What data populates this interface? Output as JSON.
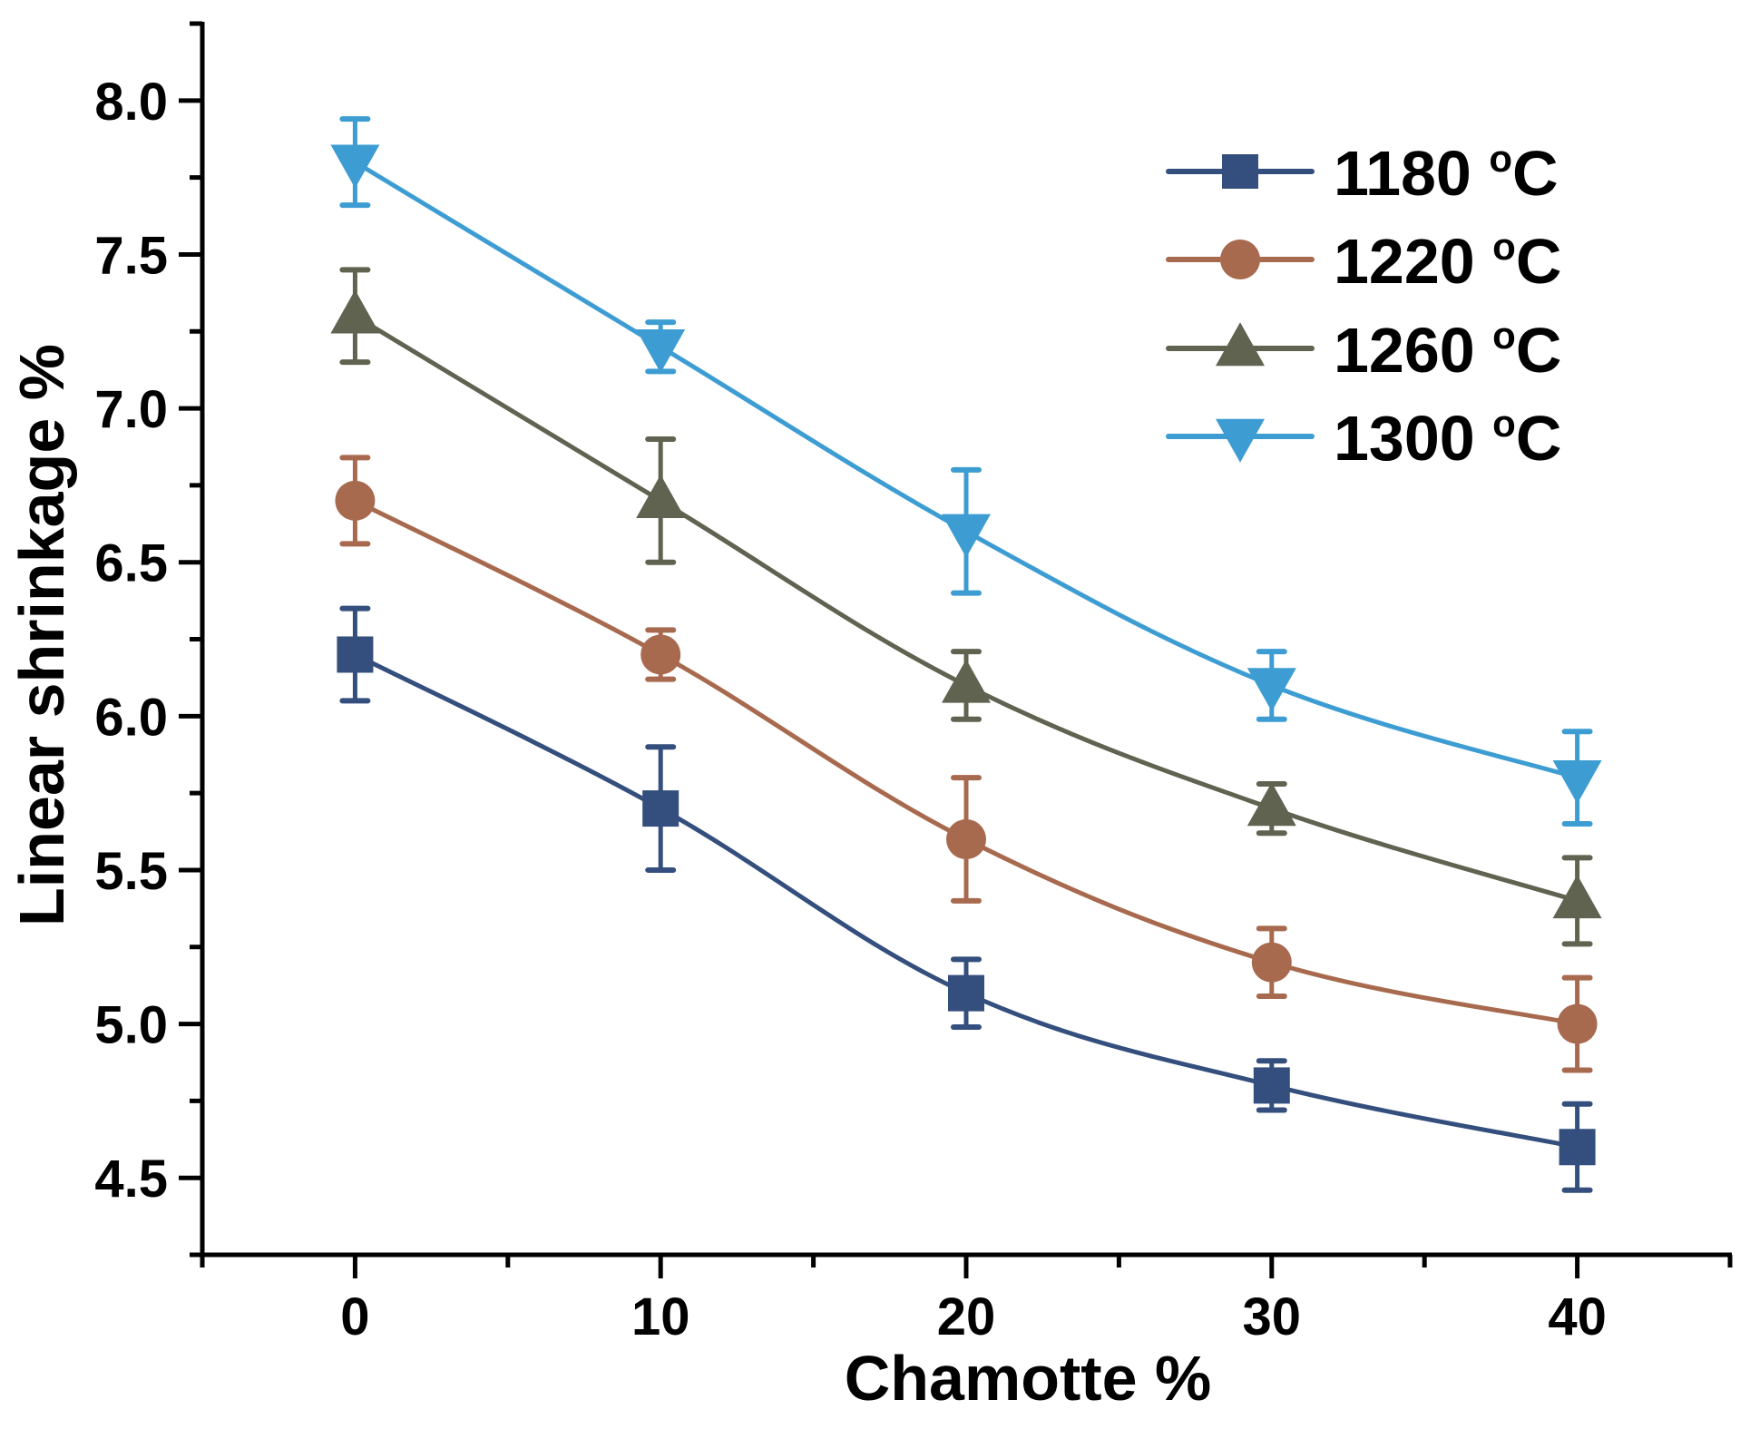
{
  "chart_data": {
    "type": "line",
    "title": "",
    "xlabel": "Chamotte %",
    "ylabel": "Linear shrinkage %",
    "x": [
      0,
      10,
      20,
      30,
      40
    ],
    "xlim": [
      -5,
      45
    ],
    "ylim": [
      4.25,
      8.25
    ],
    "xticks": [
      0,
      10,
      20,
      30,
      40
    ],
    "xtick_labels": [
      "0",
      "10",
      "20",
      "30",
      "40"
    ],
    "xminor_ticks": [
      -5,
      5,
      15,
      25,
      35,
      45
    ],
    "yticks": [
      4.5,
      5.0,
      5.5,
      6.0,
      6.5,
      7.0,
      7.5,
      8.0
    ],
    "ytick_labels": [
      "4.5",
      "5.0",
      "5.5",
      "6.0",
      "6.5",
      "7.0",
      "7.5",
      "8.0"
    ],
    "yminor_ticks": [
      4.25,
      4.75,
      5.25,
      5.75,
      6.25,
      6.75,
      7.25,
      7.75,
      8.25
    ],
    "grid": false,
    "legend_position": "top-right",
    "line_style": "smooth",
    "series": [
      {
        "name": "1180 °C",
        "label_main": "1180 ",
        "label_sup": "o",
        "label_unit": "C",
        "marker": "square",
        "color": "#344f7d",
        "values": [
          6.2,
          5.7,
          5.1,
          4.8,
          4.6
        ],
        "errors": [
          0.15,
          0.2,
          0.11,
          0.08,
          0.14
        ]
      },
      {
        "name": "1220 °C",
        "label_main": "1220 ",
        "label_sup": "o",
        "label_unit": "C",
        "marker": "circle",
        "color": "#a86a4e",
        "values": [
          6.7,
          6.2,
          5.6,
          5.2,
          5.0
        ],
        "errors": [
          0.14,
          0.08,
          0.2,
          0.11,
          0.15
        ]
      },
      {
        "name": "1260 °C",
        "label_main": "1260 ",
        "label_sup": "o",
        "label_unit": "C",
        "marker": "triangle-up",
        "color": "#5f6350",
        "values": [
          7.3,
          6.7,
          6.1,
          5.7,
          5.4
        ],
        "errors": [
          0.15,
          0.2,
          0.11,
          0.08,
          0.14
        ]
      },
      {
        "name": "1300 °C",
        "label_main": "1300 ",
        "label_sup": "o",
        "label_unit": "C",
        "marker": "triangle-down",
        "color": "#3d9dd3",
        "values": [
          7.8,
          7.2,
          6.6,
          6.1,
          5.8
        ],
        "errors": [
          0.14,
          0.08,
          0.2,
          0.11,
          0.15
        ]
      }
    ]
  }
}
